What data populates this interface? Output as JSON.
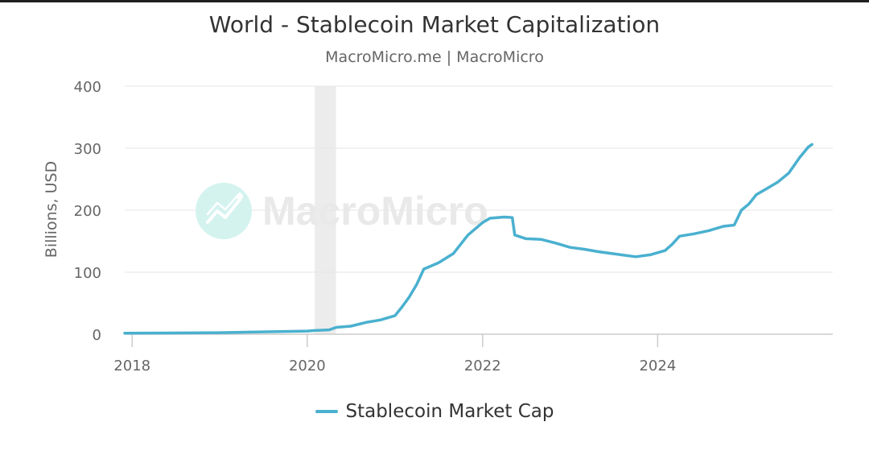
{
  "colors": {
    "series": "#4ab0cf",
    "grid": "#e6e6e6",
    "axis": "#cccccc",
    "tick_text": "#666666",
    "highlight_band": "#ececec",
    "watermark": "#d4f3ef"
  },
  "watermark": {
    "text": "MacroMicro",
    "icon": "chart-trend-icon"
  },
  "chart_data": {
    "type": "line",
    "title": "World - Stablecoin Market Capitalization",
    "subtitle": "MacroMicro.me | MacroMicro",
    "ylabel": "Billions, USD",
    "xlabel": "",
    "ylim": [
      0,
      400
    ],
    "xlim": [
      "2017-12-01",
      "2025-12-31"
    ],
    "y_ticks": [
      0,
      100,
      200,
      300,
      400
    ],
    "x_ticks": [
      {
        "date": "2018-01-01",
        "label": "2018"
      },
      {
        "date": "2020-01-01",
        "label": "2020"
      },
      {
        "date": "2022-01-01",
        "label": "2022"
      },
      {
        "date": "2024-01-01",
        "label": "2024"
      }
    ],
    "grid": true,
    "legend_position": "bottom-center",
    "shaded_period": [
      "2020-02-01",
      "2020-04-30"
    ],
    "series": [
      {
        "name": "Stablecoin Market Cap",
        "points": [
          [
            "2017-12-01",
            1.5
          ],
          [
            "2018-06-01",
            2
          ],
          [
            "2019-01-01",
            2.5
          ],
          [
            "2019-06-01",
            3.5
          ],
          [
            "2020-01-01",
            5
          ],
          [
            "2020-02-01",
            6
          ],
          [
            "2020-04-01",
            7
          ],
          [
            "2020-05-01",
            11
          ],
          [
            "2020-07-01",
            13
          ],
          [
            "2020-09-01",
            19
          ],
          [
            "2020-11-01",
            23
          ],
          [
            "2021-01-01",
            30
          ],
          [
            "2021-02-01",
            45
          ],
          [
            "2021-03-01",
            60
          ],
          [
            "2021-04-01",
            80
          ],
          [
            "2021-05-01",
            105
          ],
          [
            "2021-07-01",
            115
          ],
          [
            "2021-09-01",
            130
          ],
          [
            "2021-11-01",
            160
          ],
          [
            "2022-01-01",
            180
          ],
          [
            "2022-02-01",
            187
          ],
          [
            "2022-04-01",
            189
          ],
          [
            "2022-05-05",
            188
          ],
          [
            "2022-05-15",
            160
          ],
          [
            "2022-07-01",
            154
          ],
          [
            "2022-09-01",
            153
          ],
          [
            "2022-11-01",
            147
          ],
          [
            "2023-01-01",
            140
          ],
          [
            "2023-03-01",
            137
          ],
          [
            "2023-05-01",
            133
          ],
          [
            "2023-08-01",
            128
          ],
          [
            "2023-10-01",
            125
          ],
          [
            "2023-12-01",
            128
          ],
          [
            "2024-02-01",
            135
          ],
          [
            "2024-03-01",
            145
          ],
          [
            "2024-04-01",
            158
          ],
          [
            "2024-06-01",
            162
          ],
          [
            "2024-08-01",
            167
          ],
          [
            "2024-10-01",
            174
          ],
          [
            "2024-11-15",
            176
          ],
          [
            "2024-12-15",
            200
          ],
          [
            "2025-01-15",
            210
          ],
          [
            "2025-02-15",
            225
          ],
          [
            "2025-04-01",
            235
          ],
          [
            "2025-05-15",
            245
          ],
          [
            "2025-07-01",
            260
          ],
          [
            "2025-08-15",
            285
          ],
          [
            "2025-09-20",
            302
          ],
          [
            "2025-10-05",
            306
          ]
        ]
      }
    ]
  }
}
